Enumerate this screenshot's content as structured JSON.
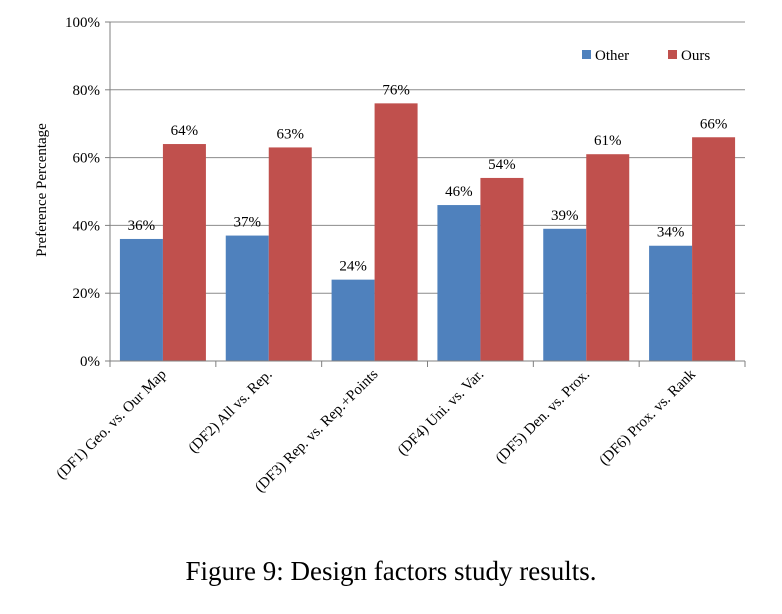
{
  "chart_data": {
    "type": "bar",
    "ylabel": "Preference Percentage",
    "ylim": [
      0,
      100
    ],
    "yticks": [
      0,
      20,
      40,
      60,
      80,
      100
    ],
    "ytick_labels": [
      "0%",
      "20%",
      "40%",
      "60%",
      "80%",
      "100%"
    ],
    "categories": [
      "(DF1) Geo. vs. Our Map",
      "(DF2) All vs. Rep.",
      "(DF3) Rep. vs. Rep.+Points",
      "(DF4) Uni. vs. Var.",
      "(DF5) Den. vs. Prox.",
      "(DF6) Prox. vs. Rank"
    ],
    "series": [
      {
        "name": "Other",
        "color": "#4F81BD",
        "values": [
          36,
          37,
          24,
          46,
          39,
          34
        ],
        "labels": [
          "36%",
          "37%",
          "24%",
          "46%",
          "39%",
          "34%"
        ]
      },
      {
        "name": "Ours",
        "color": "#C0504D",
        "values": [
          64,
          63,
          76,
          54,
          61,
          66
        ],
        "labels": [
          "64%",
          "63%",
          "76%",
          "54%",
          "61%",
          "66%"
        ]
      }
    ],
    "grid": true,
    "legend_position": "top-right"
  },
  "caption": "Figure 9: Design factors study results."
}
